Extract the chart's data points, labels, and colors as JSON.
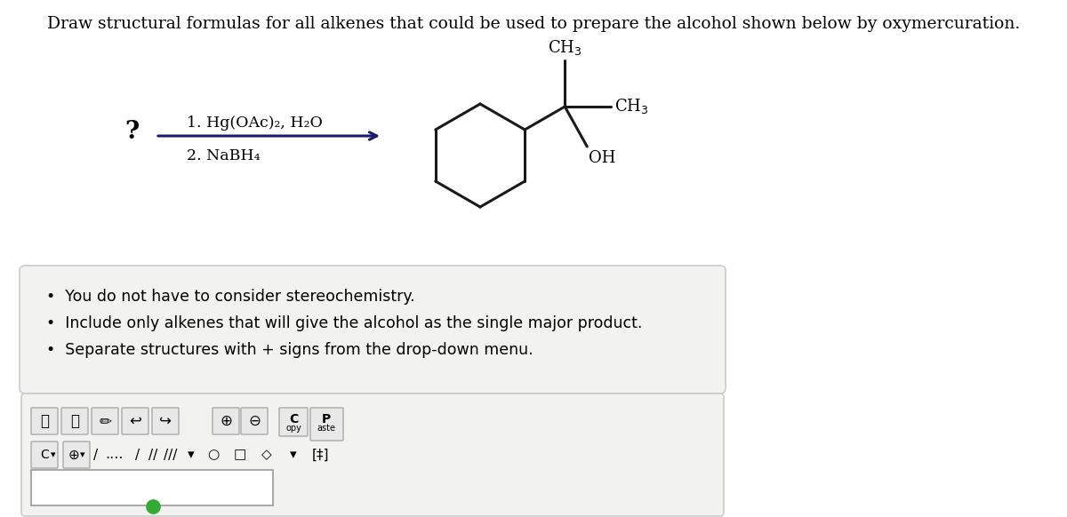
{
  "title_text": "Draw structural formulas for all alkenes that could be used to prepare the alcohol shown below by oxymercuration.",
  "title_fontsize": 13.5,
  "bg_color": "#ffffff",
  "question_mark": "?",
  "reaction_step1": "1. Hg(OAc)₂, H₂O",
  "reaction_step2": "2. NaBH₄",
  "bullet_points": [
    "You do not have to consider stereochemistry.",
    "Include only alkenes that will give the alcohol as the single major product.",
    "Separate structures with + signs from the drop-down menu."
  ],
  "bullet_box_color": "#f2f2f0",
  "bullet_box_edge": "#cccccc",
  "toolbar_box_color": "#f2f2f0",
  "toolbar_box_edge": "#cccccc",
  "arrow_color": "#1a1a6e",
  "bond_color": "#1a1a1a",
  "text_color": "#000000"
}
